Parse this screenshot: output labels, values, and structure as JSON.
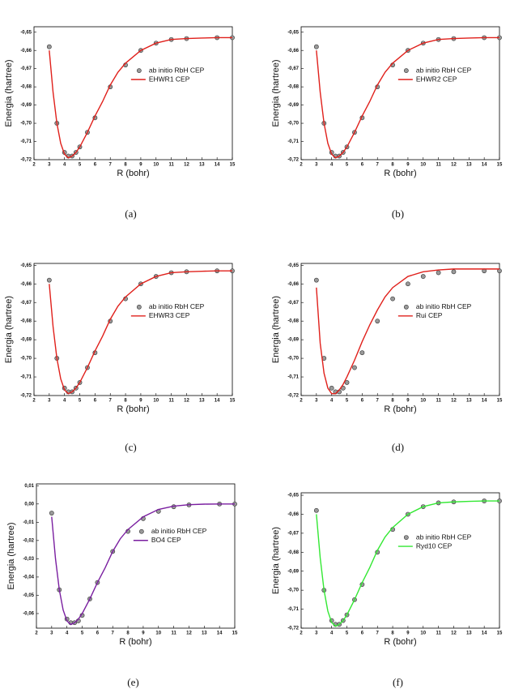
{
  "chart_data": [
    {
      "type": "line",
      "caption": "(a)",
      "xlabel": "R (bohr)",
      "ylabel": "Energia (hartree)",
      "legend": "right",
      "xlim": [
        2,
        15
      ],
      "xticks": [
        2,
        3,
        4,
        5,
        6,
        7,
        8,
        9,
        10,
        11,
        12,
        13,
        14,
        15
      ],
      "ylim": [
        -0.72,
        -0.647
      ],
      "yticks": [
        {
          "value": -0.72,
          "label": "-0,72"
        },
        {
          "value": -0.71,
          "label": "-0,71"
        },
        {
          "value": -0.7,
          "label": "-0,70"
        },
        {
          "value": -0.69,
          "label": "-0,69"
        },
        {
          "value": -0.68,
          "label": "-0,68"
        },
        {
          "value": -0.67,
          "label": "-0,67"
        },
        {
          "value": -0.66,
          "label": "-0,66"
        },
        {
          "value": -0.65,
          "label": "-0,65"
        }
      ],
      "series": [
        {
          "name": "ab initio RbH CEP",
          "style": "markers",
          "color": "#9a9a9a",
          "x": [
            3,
            3.5,
            4,
            4.25,
            4.5,
            4.75,
            5,
            5.5,
            6,
            7,
            8,
            9,
            10,
            11,
            12,
            14,
            15
          ],
          "values": [
            -0.658,
            -0.7,
            -0.716,
            -0.718,
            -0.718,
            -0.716,
            -0.713,
            -0.705,
            -0.697,
            -0.68,
            -0.668,
            -0.66,
            -0.656,
            -0.654,
            -0.6535,
            -0.653,
            -0.653
          ]
        },
        {
          "name": "EHWR1 CEP",
          "style": "line",
          "color": "#e0201b",
          "x": [
            3,
            3.25,
            3.5,
            3.75,
            4,
            4.25,
            4.5,
            4.75,
            5,
            5.5,
            6,
            6.5,
            7,
            7.5,
            8,
            9,
            10,
            11,
            12,
            13,
            14,
            15
          ],
          "values": [
            -0.66,
            -0.683,
            -0.7,
            -0.711,
            -0.717,
            -0.719,
            -0.718,
            -0.716,
            -0.713,
            -0.705,
            -0.696,
            -0.688,
            -0.679,
            -0.672,
            -0.667,
            -0.66,
            -0.656,
            -0.654,
            -0.6535,
            -0.6532,
            -0.653,
            -0.653
          ]
        }
      ]
    },
    {
      "type": "line",
      "caption": "(b)",
      "xlabel": "R (bohr)",
      "ylabel": "Energia (hartree)",
      "legend": "right",
      "xlim": [
        2,
        15
      ],
      "xticks": [
        2,
        3,
        4,
        5,
        6,
        7,
        8,
        9,
        10,
        11,
        12,
        13,
        14,
        15
      ],
      "ylim": [
        -0.72,
        -0.647
      ],
      "yticks": [
        {
          "value": -0.72,
          "label": "-0,72"
        },
        {
          "value": -0.71,
          "label": "-0,71"
        },
        {
          "value": -0.7,
          "label": "-0,70"
        },
        {
          "value": -0.69,
          "label": "-0,69"
        },
        {
          "value": -0.68,
          "label": "-0,68"
        },
        {
          "value": -0.67,
          "label": "-0,67"
        },
        {
          "value": -0.66,
          "label": "-0,66"
        },
        {
          "value": -0.65,
          "label": "-0,65"
        }
      ],
      "series": [
        {
          "name": "ab initio RbH CEP",
          "style": "markers",
          "color": "#9a9a9a",
          "x": [
            3,
            3.5,
            4,
            4.25,
            4.5,
            4.75,
            5,
            5.5,
            6,
            7,
            8,
            9,
            10,
            11,
            12,
            14,
            15
          ],
          "values": [
            -0.658,
            -0.7,
            -0.716,
            -0.718,
            -0.718,
            -0.716,
            -0.713,
            -0.705,
            -0.697,
            -0.68,
            -0.668,
            -0.66,
            -0.656,
            -0.654,
            -0.6535,
            -0.653,
            -0.653
          ]
        },
        {
          "name": "EHWR2 CEP",
          "style": "line",
          "color": "#e0201b",
          "x": [
            3,
            3.25,
            3.5,
            3.75,
            4,
            4.25,
            4.5,
            4.75,
            5,
            5.5,
            6,
            6.5,
            7,
            7.5,
            8,
            9,
            10,
            11,
            12,
            13,
            14,
            15
          ],
          "values": [
            -0.66,
            -0.683,
            -0.7,
            -0.711,
            -0.717,
            -0.719,
            -0.718,
            -0.716,
            -0.713,
            -0.705,
            -0.696,
            -0.688,
            -0.679,
            -0.672,
            -0.667,
            -0.66,
            -0.656,
            -0.654,
            -0.6535,
            -0.6532,
            -0.653,
            -0.653
          ]
        }
      ]
    },
    {
      "type": "line",
      "caption": "(c)",
      "xlabel": "R (bohr)",
      "ylabel": "Energia (hartree)",
      "legend": "right",
      "xlim": [
        2,
        15
      ],
      "xticks": [
        2,
        3,
        4,
        5,
        6,
        7,
        8,
        9,
        10,
        11,
        12,
        13,
        14,
        15
      ],
      "ylim": [
        -0.72,
        -0.649
      ],
      "yticks": [
        {
          "value": -0.72,
          "label": "-0,72"
        },
        {
          "value": -0.71,
          "label": "-0,71"
        },
        {
          "value": -0.7,
          "label": "-0,70"
        },
        {
          "value": -0.69,
          "label": "-0,69"
        },
        {
          "value": -0.68,
          "label": "-0,68"
        },
        {
          "value": -0.67,
          "label": "-0,67"
        },
        {
          "value": -0.66,
          "label": "-0,66"
        },
        {
          "value": -0.65,
          "label": "-0,65"
        }
      ],
      "series": [
        {
          "name": "ab initio RbH CEP",
          "style": "markers",
          "color": "#9a9a9a",
          "x": [
            3,
            3.5,
            4,
            4.25,
            4.5,
            4.75,
            5,
            5.5,
            6,
            7,
            8,
            9,
            10,
            11,
            12,
            14,
            15
          ],
          "values": [
            -0.658,
            -0.7,
            -0.716,
            -0.718,
            -0.718,
            -0.716,
            -0.713,
            -0.705,
            -0.697,
            -0.68,
            -0.668,
            -0.66,
            -0.656,
            -0.654,
            -0.6535,
            -0.653,
            -0.653
          ]
        },
        {
          "name": "EHWR3 CEP",
          "style": "line",
          "color": "#e0201b",
          "x": [
            3,
            3.25,
            3.5,
            3.75,
            4,
            4.25,
            4.5,
            4.75,
            5,
            5.5,
            6,
            6.5,
            7,
            7.5,
            8,
            9,
            10,
            11,
            12,
            13,
            14,
            15
          ],
          "values": [
            -0.66,
            -0.683,
            -0.7,
            -0.711,
            -0.717,
            -0.719,
            -0.718,
            -0.716,
            -0.713,
            -0.705,
            -0.696,
            -0.688,
            -0.679,
            -0.672,
            -0.667,
            -0.66,
            -0.656,
            -0.654,
            -0.6535,
            -0.6532,
            -0.653,
            -0.653
          ]
        }
      ]
    },
    {
      "type": "line",
      "caption": "(d)",
      "xlabel": "R (bohr)",
      "ylabel": "Energia (hartree)",
      "legend": "right",
      "xlim": [
        2,
        15
      ],
      "xticks": [
        2,
        3,
        4,
        5,
        6,
        7,
        8,
        9,
        10,
        11,
        12,
        13,
        14,
        15
      ],
      "ylim": [
        -0.72,
        -0.649
      ],
      "yticks": [
        {
          "value": -0.72,
          "label": "-0,72"
        },
        {
          "value": -0.71,
          "label": "-0,71"
        },
        {
          "value": -0.7,
          "label": "-0,70"
        },
        {
          "value": -0.69,
          "label": "-0,69"
        },
        {
          "value": -0.68,
          "label": "-0,68"
        },
        {
          "value": -0.67,
          "label": "-0,67"
        },
        {
          "value": -0.66,
          "label": "-0,66"
        },
        {
          "value": -0.65,
          "label": "-0,65"
        }
      ],
      "series": [
        {
          "name": "ab initio RbH CEP",
          "style": "markers",
          "color": "#9a9a9a",
          "x": [
            3,
            3.5,
            4,
            4.25,
            4.5,
            4.75,
            5,
            5.5,
            6,
            7,
            8,
            9,
            10,
            11,
            12,
            14,
            15
          ],
          "values": [
            -0.658,
            -0.7,
            -0.716,
            -0.718,
            -0.718,
            -0.716,
            -0.713,
            -0.705,
            -0.697,
            -0.68,
            -0.668,
            -0.66,
            -0.656,
            -0.654,
            -0.6535,
            -0.653,
            -0.653
          ]
        },
        {
          "name": "Rui CEP",
          "style": "line",
          "color": "#e0201b",
          "x": [
            3,
            3.25,
            3.5,
            3.75,
            4,
            4.25,
            4.5,
            4.75,
            5,
            5.5,
            6,
            6.5,
            7,
            7.5,
            8,
            9,
            10,
            11,
            12,
            13,
            14,
            15
          ],
          "values": [
            -0.662,
            -0.692,
            -0.708,
            -0.716,
            -0.719,
            -0.719,
            -0.717,
            -0.714,
            -0.71,
            -0.701,
            -0.691,
            -0.682,
            -0.674,
            -0.667,
            -0.662,
            -0.656,
            -0.6535,
            -0.6525,
            -0.652,
            -0.652,
            -0.652,
            -0.652
          ]
        }
      ]
    },
    {
      "type": "line",
      "caption": "(e)",
      "xlabel": "R (bohr)",
      "ylabel": "Energia (hartree)",
      "legend": "right",
      "xlim": [
        2,
        15
      ],
      "xticks": [
        2,
        3,
        4,
        5,
        6,
        7,
        8,
        9,
        10,
        11,
        12,
        13,
        14,
        15
      ],
      "ylim": [
        -0.068,
        0.011
      ],
      "yticks": [
        {
          "value": -0.06,
          "label": "-0,06"
        },
        {
          "value": -0.05,
          "label": "-0,05"
        },
        {
          "value": -0.04,
          "label": "-0,04"
        },
        {
          "value": -0.03,
          "label": "-0,03"
        },
        {
          "value": -0.02,
          "label": "-0,02"
        },
        {
          "value": -0.01,
          "label": "-0,01"
        },
        {
          "value": 0,
          "label": "0,00"
        },
        {
          "value": 0.01,
          "label": "0,01"
        }
      ],
      "series": [
        {
          "name": "ab initio RbH CEP",
          "style": "markers",
          "color": "#9a9a9a",
          "x": [
            3,
            3.5,
            4,
            4.25,
            4.5,
            4.75,
            5,
            5.5,
            6,
            7,
            8,
            9,
            10,
            11,
            12,
            14,
            15
          ],
          "values": [
            -0.005,
            -0.047,
            -0.063,
            -0.065,
            -0.065,
            -0.064,
            -0.061,
            -0.052,
            -0.043,
            -0.026,
            -0.015,
            -0.008,
            -0.004,
            -0.0015,
            -0.0005,
            0,
            0
          ]
        },
        {
          "name": "BO4 CEP",
          "style": "line",
          "color": "#7a1fa0",
          "x": [
            3,
            3.25,
            3.5,
            3.75,
            4,
            4.25,
            4.5,
            4.75,
            5,
            5.5,
            6,
            6.5,
            7,
            7.5,
            8,
            9,
            10,
            11,
            12,
            13,
            14,
            15
          ],
          "values": [
            -0.007,
            -0.03,
            -0.047,
            -0.058,
            -0.064,
            -0.066,
            -0.065,
            -0.063,
            -0.06,
            -0.052,
            -0.043,
            -0.035,
            -0.026,
            -0.019,
            -0.014,
            -0.007,
            -0.003,
            -0.0012,
            -0.0004,
            -0.0001,
            0,
            0
          ]
        }
      ]
    },
    {
      "type": "line",
      "caption": "(f)",
      "xlabel": "R (bohr)",
      "ylabel": "Energia (hartree)",
      "legend": "right",
      "xlim": [
        2,
        15
      ],
      "xticks": [
        2,
        3,
        4,
        5,
        6,
        7,
        8,
        9,
        10,
        11,
        12,
        13,
        14,
        15
      ],
      "ylim": [
        -0.72,
        -0.6487
      ],
      "yticks": [
        {
          "value": -0.72,
          "label": "-0,72"
        },
        {
          "value": -0.71,
          "label": "-0,71"
        },
        {
          "value": -0.7,
          "label": "-0,70"
        },
        {
          "value": -0.69,
          "label": "-0,69"
        },
        {
          "value": -0.68,
          "label": "-0,68"
        },
        {
          "value": -0.67,
          "label": "-0,67"
        },
        {
          "value": -0.66,
          "label": "-0,66"
        },
        {
          "value": -0.65,
          "label": "-0,65"
        }
      ],
      "series": [
        {
          "name": "ab initio RbH CEP",
          "style": "markers",
          "color": "#9a9a9a",
          "x": [
            3,
            3.5,
            4,
            4.25,
            4.5,
            4.75,
            5,
            5.5,
            6,
            7,
            8,
            9,
            10,
            11,
            12,
            14,
            15
          ],
          "values": [
            -0.658,
            -0.7,
            -0.716,
            -0.718,
            -0.718,
            -0.716,
            -0.713,
            -0.705,
            -0.697,
            -0.68,
            -0.668,
            -0.66,
            -0.656,
            -0.654,
            -0.6535,
            -0.653,
            -0.653
          ]
        },
        {
          "name": "Ryd10 CEP",
          "style": "line",
          "color": "#33e833",
          "x": [
            3,
            3.25,
            3.5,
            3.75,
            4,
            4.25,
            4.5,
            4.75,
            5,
            5.5,
            6,
            6.5,
            7,
            7.5,
            8,
            9,
            10,
            11,
            12,
            13,
            14,
            15
          ],
          "values": [
            -0.66,
            -0.683,
            -0.7,
            -0.711,
            -0.717,
            -0.719,
            -0.718,
            -0.716,
            -0.713,
            -0.705,
            -0.696,
            -0.688,
            -0.679,
            -0.672,
            -0.667,
            -0.66,
            -0.656,
            -0.654,
            -0.6535,
            -0.6532,
            -0.653,
            -0.653
          ]
        }
      ]
    }
  ]
}
